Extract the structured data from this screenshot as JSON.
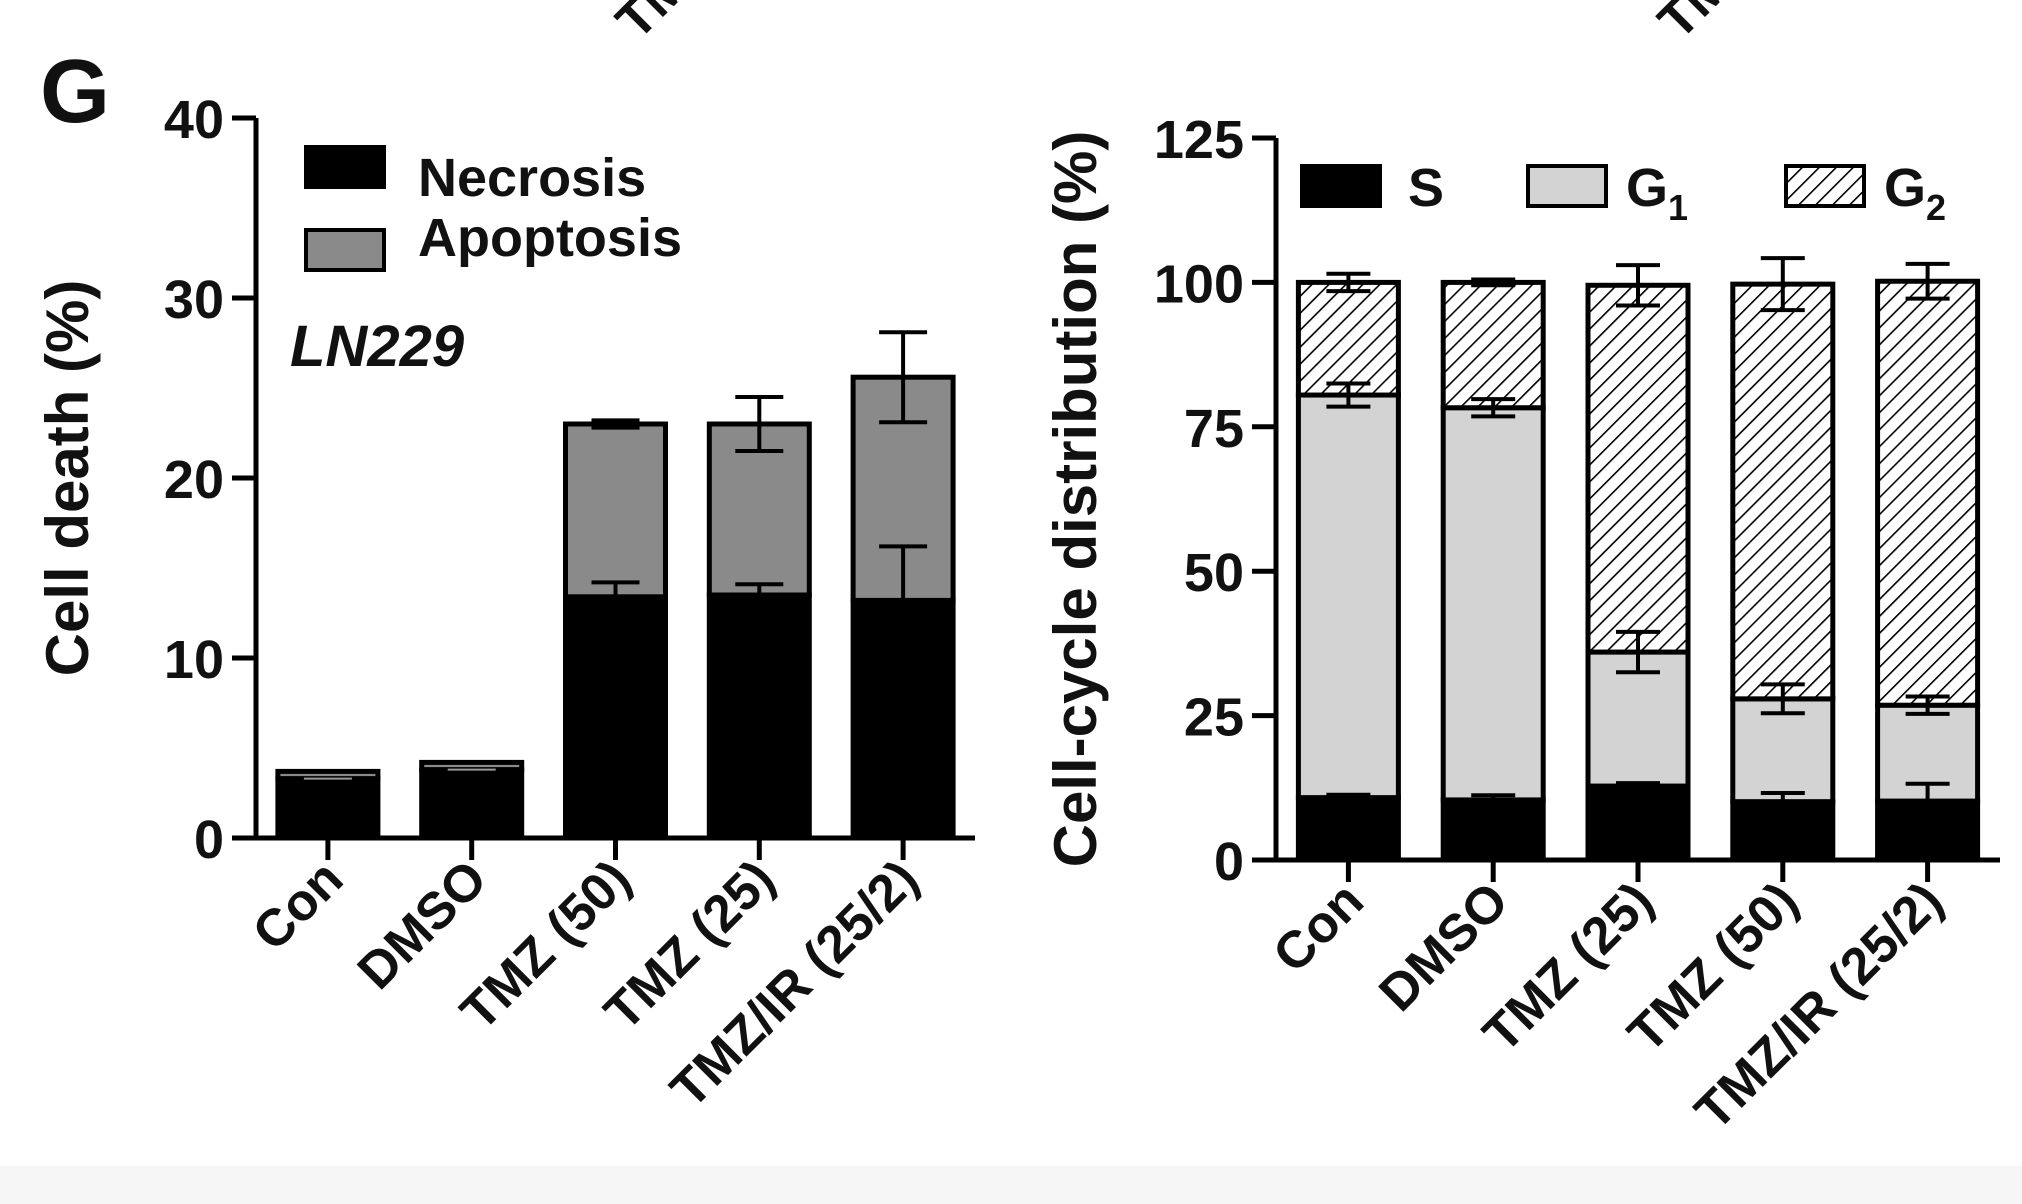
{
  "panel_label": "G",
  "top_fragments": [
    "TM",
    "TM"
  ],
  "colors": {
    "necrosis": "#000000",
    "apoptosis": "#8a8a8a",
    "S": "#000000",
    "G1": "#d3d3d3",
    "G2_line": "#000000",
    "background": "#ffffff",
    "bottom_band": "#f6f6f6"
  },
  "chart_data": [
    {
      "type": "bar",
      "stacked": true,
      "ylabel": "Cell death (%)",
      "annotation": "LN229",
      "ylim": [
        0,
        40
      ],
      "yticks": [
        0,
        10,
        20,
        30,
        40
      ],
      "categories": [
        "Con",
        "DMSO",
        "TMZ (50)",
        "TMZ (25)",
        "TMZ/IR (25/2)"
      ],
      "series": [
        {
          "name": "Necrosis",
          "values": [
            3.3,
            3.8,
            13.4,
            13.5,
            13.2
          ],
          "errors": [
            0.1,
            0.1,
            0.8,
            0.6,
            3.0
          ]
        },
        {
          "name": "Apoptosis",
          "values": [
            0.4,
            0.4,
            9.6,
            9.5,
            12.4
          ],
          "errors": [
            0.1,
            0.1,
            0.2,
            1.5,
            2.5
          ]
        }
      ],
      "legend_position": "top-left"
    },
    {
      "type": "bar",
      "stacked": true,
      "ylabel": "Cell-cycle distribution (%)",
      "ylim": [
        0,
        125
      ],
      "yticks": [
        0,
        25,
        50,
        75,
        100,
        125
      ],
      "categories": [
        "Con",
        "DMSO",
        "TMZ (25)",
        "TMZ (50)",
        "TMZ/IR (25/2)"
      ],
      "series": [
        {
          "name": "S",
          "values": [
            10.8,
            10.4,
            12.8,
            10.1,
            10.2
          ],
          "errors": [
            0.5,
            0.8,
            0.5,
            1.5,
            3.0
          ]
        },
        {
          "name": "G1",
          "sub": "1",
          "values": [
            69.7,
            67.9,
            23.2,
            17.8,
            16.6
          ],
          "errors": [
            2.0,
            1.5,
            3.5,
            2.5,
            1.5
          ]
        },
        {
          "name": "G2",
          "sub": "2",
          "values": [
            19.5,
            21.7,
            63.5,
            71.8,
            73.4
          ],
          "errors": [
            1.5,
            0.5,
            3.5,
            4.5,
            3.0
          ]
        }
      ],
      "legend_position": "top"
    }
  ]
}
